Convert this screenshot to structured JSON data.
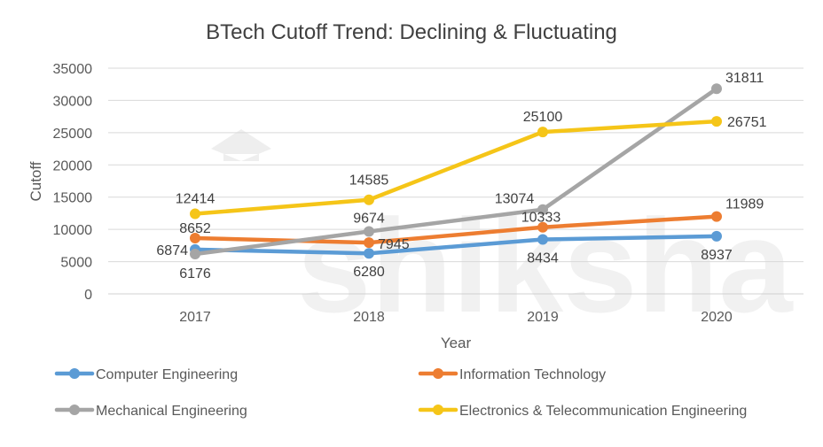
{
  "chart_data": {
    "type": "line",
    "title": "BTech Cutoff Trend: Declining & Fluctuating",
    "xlabel": "Year",
    "ylabel": "Cutoff",
    "categories": [
      "2017",
      "2018",
      "2019",
      "2020"
    ],
    "ylim": [
      0,
      35000
    ],
    "yticks": [
      0,
      5000,
      10000,
      15000,
      20000,
      25000,
      30000,
      35000
    ],
    "grid": true,
    "legend": "bottom",
    "series": [
      {
        "name": "Computer Engineering",
        "color": "#5b9bd5",
        "values": [
          6874,
          6280,
          8434,
          8937
        ]
      },
      {
        "name": "Information Technology",
        "color": "#ed7d31",
        "values": [
          8652,
          7945,
          10333,
          11989
        ]
      },
      {
        "name": "Mechanical Engineering",
        "color": "#a5a5a5",
        "values": [
          6176,
          9674,
          13074,
          31811
        ]
      },
      {
        "name": "Electronics & Telecommunication Engineering",
        "color": "#f5c518",
        "values": [
          12414,
          14585,
          25100,
          26751
        ]
      }
    ],
    "watermark": "shiksha"
  }
}
